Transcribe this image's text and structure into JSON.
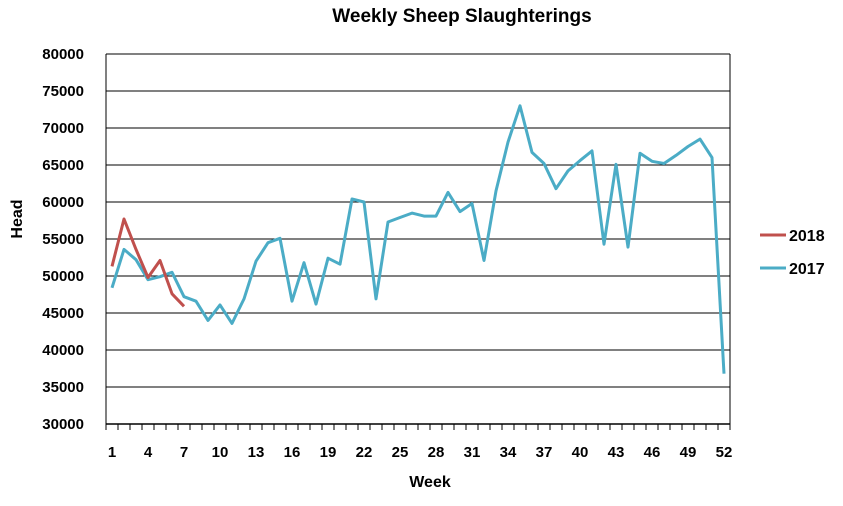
{
  "chart_data": {
    "type": "line",
    "title": "Weekly Sheep Slaughterings",
    "xlabel": "Week",
    "ylabel": "Head",
    "ylim": [
      30000,
      80000
    ],
    "yticks": [
      "30000",
      "35000",
      "40000",
      "45000",
      "50000",
      "55000",
      "60000",
      "65000",
      "70000",
      "75000",
      "80000"
    ],
    "xlim": [
      1,
      52
    ],
    "xticks": [
      "1",
      "4",
      "7",
      "10",
      "13",
      "16",
      "19",
      "22",
      "25",
      "28",
      "31",
      "34",
      "37",
      "40",
      "43",
      "46",
      "49",
      "52"
    ],
    "grid": "horizontal",
    "legend_position": "right",
    "series": [
      {
        "name": "2018",
        "color": "#c0504d",
        "x": [
          1,
          2,
          3,
          4,
          5,
          6,
          7
        ],
        "values": [
          51300,
          57700,
          53600,
          49800,
          52100,
          47600,
          45900
        ]
      },
      {
        "name": "2017",
        "color": "#4bacc6",
        "x": [
          1,
          2,
          3,
          4,
          5,
          6,
          7,
          8,
          9,
          10,
          11,
          12,
          13,
          14,
          15,
          16,
          17,
          18,
          19,
          20,
          21,
          22,
          23,
          24,
          25,
          26,
          27,
          28,
          29,
          30,
          31,
          32,
          33,
          34,
          35,
          36,
          37,
          38,
          39,
          40,
          41,
          42,
          43,
          44,
          45,
          46,
          47,
          48,
          49,
          50,
          51,
          52
        ],
        "values": [
          48400,
          53600,
          52200,
          49500,
          49900,
          50500,
          47200,
          46600,
          44000,
          46100,
          43600,
          46900,
          52000,
          54500,
          55100,
          46600,
          51800,
          46200,
          52400,
          51600,
          60400,
          60000,
          46900,
          57300,
          57900,
          58500,
          58100,
          58100,
          61300,
          58700,
          59800,
          52100,
          61500,
          68100,
          73000,
          66700,
          65200,
          61800,
          64200,
          65600,
          66900,
          54300,
          65100,
          53900,
          66600,
          65500,
          65200,
          66300,
          67500,
          68500,
          66000,
          36800
        ]
      }
    ]
  }
}
